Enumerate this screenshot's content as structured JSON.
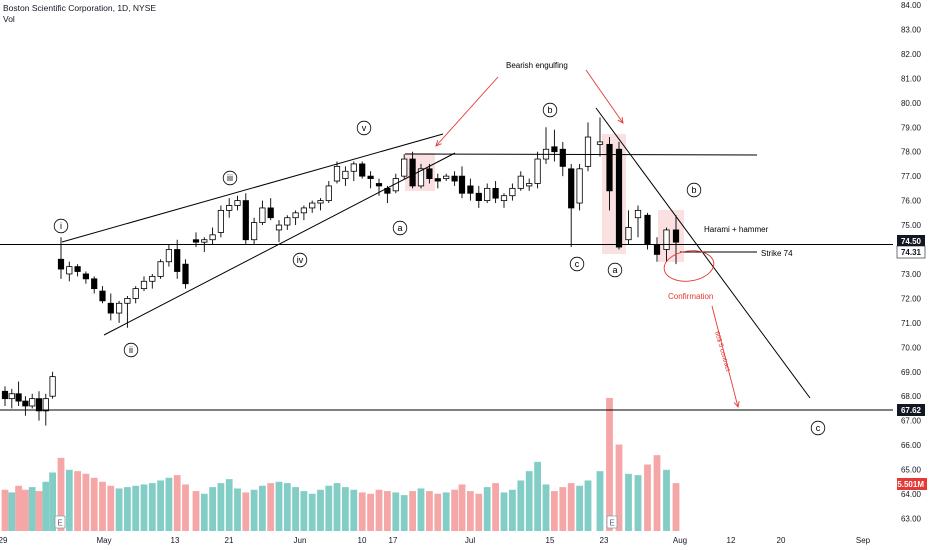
{
  "header": {
    "symbol_line": "Boston Scientific Corporation, 1D, NYSE",
    "volume_label": "Vol"
  },
  "colors": {
    "up": "#ffffff",
    "down": "#000000",
    "vol_up": "#82cec6",
    "vol_down": "#f5a6a6",
    "annotation": "#e53935",
    "highlight": "#f8d6d6",
    "axis_text": "#131722",
    "badge_bg": "#131722"
  },
  "chart_data": {
    "type": "candlestick",
    "y_ticks": [
      "63.00",
      "64.00",
      "65.00",
      "66.00",
      "67.00",
      "68.00",
      "69.00",
      "70.00",
      "71.00",
      "72.00",
      "73.00",
      "74.00",
      "75.00",
      "76.00",
      "77.00",
      "78.00",
      "79.00",
      "80.00",
      "81.00",
      "82.00",
      "83.00",
      "84.00"
    ],
    "ylim": [
      63,
      84
    ],
    "x_ticks": [
      "29",
      "May",
      "13",
      "21",
      "Jun",
      "10",
      "17",
      "Jul",
      "15",
      "23",
      "Aug",
      "12",
      "20",
      "Sep"
    ],
    "price_badges": [
      "74.50",
      "74.31",
      "67.62"
    ],
    "volume_badge": "5.501M",
    "earnings_markers": [
      "E",
      "E"
    ],
    "candles": [
      {
        "o": 68.2,
        "h": 68.4,
        "l": 67.6,
        "c": 67.9
      },
      {
        "o": 67.9,
        "h": 68.3,
        "l": 67.5,
        "c": 68.1
      },
      {
        "o": 68.1,
        "h": 68.6,
        "l": 67.6,
        "c": 67.8
      },
      {
        "o": 67.8,
        "h": 68.0,
        "l": 67.2,
        "c": 67.6
      },
      {
        "o": 67.6,
        "h": 68.1,
        "l": 67.5,
        "c": 67.9
      },
      {
        "o": 67.9,
        "h": 68.2,
        "l": 67.0,
        "c": 67.4
      },
      {
        "o": 67.4,
        "h": 68.1,
        "l": 66.8,
        "c": 67.9
      },
      {
        "o": 68.0,
        "h": 69.0,
        "l": 67.9,
        "c": 68.8
      },
      {
        "o": 73.6,
        "h": 74.5,
        "l": 72.8,
        "c": 73.2
      },
      {
        "o": 73.0,
        "h": 73.5,
        "l": 72.7,
        "c": 73.3
      },
      {
        "o": 73.3,
        "h": 73.4,
        "l": 72.9,
        "c": 73.1
      },
      {
        "o": 73.0,
        "h": 73.1,
        "l": 72.6,
        "c": 72.8
      },
      {
        "o": 72.8,
        "h": 72.9,
        "l": 72.2,
        "c": 72.4
      },
      {
        "o": 72.3,
        "h": 72.5,
        "l": 71.8,
        "c": 71.9
      },
      {
        "o": 71.8,
        "h": 72.2,
        "l": 71.1,
        "c": 71.4
      },
      {
        "o": 71.4,
        "h": 71.9,
        "l": 71.0,
        "c": 71.8
      },
      {
        "o": 71.8,
        "h": 72.1,
        "l": 70.8,
        "c": 72.0
      },
      {
        "o": 72.0,
        "h": 72.5,
        "l": 71.8,
        "c": 72.4
      },
      {
        "o": 72.4,
        "h": 72.9,
        "l": 72.3,
        "c": 72.7
      },
      {
        "o": 72.7,
        "h": 73.0,
        "l": 72.4,
        "c": 72.9
      },
      {
        "o": 72.9,
        "h": 73.6,
        "l": 72.8,
        "c": 73.5
      },
      {
        "o": 73.5,
        "h": 74.2,
        "l": 73.3,
        "c": 74.0
      },
      {
        "o": 74.0,
        "h": 74.4,
        "l": 72.8,
        "c": 73.1
      },
      {
        "o": 73.4,
        "h": 73.6,
        "l": 72.4,
        "c": 72.6
      },
      {
        "o": 74.4,
        "h": 74.7,
        "l": 74.1,
        "c": 74.3
      },
      {
        "o": 74.3,
        "h": 74.5,
        "l": 73.9,
        "c": 74.4
      },
      {
        "o": 74.4,
        "h": 74.9,
        "l": 74.2,
        "c": 74.6
      },
      {
        "o": 74.7,
        "h": 75.8,
        "l": 74.5,
        "c": 75.6
      },
      {
        "o": 75.6,
        "h": 76.1,
        "l": 75.3,
        "c": 75.8
      },
      {
        "o": 75.8,
        "h": 76.2,
        "l": 75.6,
        "c": 76.0
      },
      {
        "o": 76.0,
        "h": 76.3,
        "l": 74.2,
        "c": 74.4
      },
      {
        "o": 74.4,
        "h": 75.3,
        "l": 74.2,
        "c": 75.1
      },
      {
        "o": 75.1,
        "h": 76.0,
        "l": 75.0,
        "c": 75.7
      },
      {
        "o": 75.7,
        "h": 76.1,
        "l": 75.2,
        "c": 75.3
      },
      {
        "o": 74.8,
        "h": 75.2,
        "l": 74.3,
        "c": 75.0
      },
      {
        "o": 75.0,
        "h": 75.4,
        "l": 74.8,
        "c": 75.3
      },
      {
        "o": 75.3,
        "h": 75.6,
        "l": 75.0,
        "c": 75.5
      },
      {
        "o": 75.5,
        "h": 75.8,
        "l": 75.2,
        "c": 75.7
      },
      {
        "o": 75.7,
        "h": 76.0,
        "l": 75.5,
        "c": 75.9
      },
      {
        "o": 75.9,
        "h": 76.1,
        "l": 75.6,
        "c": 76.0
      },
      {
        "o": 76.0,
        "h": 76.8,
        "l": 75.9,
        "c": 76.6
      },
      {
        "o": 76.8,
        "h": 77.6,
        "l": 76.7,
        "c": 77.4
      },
      {
        "o": 76.9,
        "h": 77.4,
        "l": 76.6,
        "c": 77.2
      },
      {
        "o": 77.2,
        "h": 77.6,
        "l": 76.8,
        "c": 77.5
      },
      {
        "o": 77.5,
        "h": 77.6,
        "l": 76.9,
        "c": 77.0
      },
      {
        "o": 77.0,
        "h": 77.2,
        "l": 76.5,
        "c": 76.9
      },
      {
        "o": 76.7,
        "h": 76.9,
        "l": 76.2,
        "c": 76.6
      },
      {
        "o": 76.5,
        "h": 76.6,
        "l": 75.9,
        "c": 76.3
      },
      {
        "o": 76.4,
        "h": 77.1,
        "l": 76.3,
        "c": 76.9
      },
      {
        "o": 77.0,
        "h": 77.9,
        "l": 76.9,
        "c": 77.7
      },
      {
        "o": 77.7,
        "h": 78.0,
        "l": 76.5,
        "c": 76.6
      },
      {
        "o": 76.6,
        "h": 77.5,
        "l": 76.5,
        "c": 77.3
      },
      {
        "o": 77.3,
        "h": 77.5,
        "l": 76.7,
        "c": 76.9
      },
      {
        "o": 76.9,
        "h": 77.1,
        "l": 76.5,
        "c": 76.8
      },
      {
        "o": 76.9,
        "h": 77.1,
        "l": 76.8,
        "c": 77.0
      },
      {
        "o": 77.0,
        "h": 77.2,
        "l": 76.6,
        "c": 76.8
      },
      {
        "o": 77.0,
        "h": 77.4,
        "l": 76.1,
        "c": 76.3
      },
      {
        "o": 76.6,
        "h": 76.9,
        "l": 76.0,
        "c": 76.3
      },
      {
        "o": 76.3,
        "h": 76.6,
        "l": 75.7,
        "c": 76.0
      },
      {
        "o": 76.0,
        "h": 76.7,
        "l": 75.9,
        "c": 76.5
      },
      {
        "o": 76.5,
        "h": 76.8,
        "l": 75.9,
        "c": 76.1
      },
      {
        "o": 76.0,
        "h": 76.3,
        "l": 75.7,
        "c": 76.2
      },
      {
        "o": 76.2,
        "h": 76.7,
        "l": 76.0,
        "c": 76.5
      },
      {
        "o": 76.5,
        "h": 77.2,
        "l": 76.4,
        "c": 77.0
      },
      {
        "o": 76.6,
        "h": 76.9,
        "l": 76.4,
        "c": 76.7
      },
      {
        "o": 76.7,
        "h": 78.0,
        "l": 76.5,
        "c": 77.7
      },
      {
        "o": 77.7,
        "h": 79.0,
        "l": 77.5,
        "c": 78.1
      },
      {
        "o": 78.2,
        "h": 78.9,
        "l": 77.6,
        "c": 78.0
      },
      {
        "o": 78.1,
        "h": 78.4,
        "l": 77.0,
        "c": 77.4
      },
      {
        "o": 77.3,
        "h": 77.5,
        "l": 74.1,
        "c": 75.7
      },
      {
        "o": 75.9,
        "h": 77.5,
        "l": 75.6,
        "c": 77.3
      },
      {
        "o": 77.4,
        "h": 79.2,
        "l": 77.2,
        "c": 78.6
      },
      {
        "o": 78.3,
        "h": 79.4,
        "l": 77.8,
        "c": 78.4
      },
      {
        "o": 78.3,
        "h": 78.6,
        "l": 75.6,
        "c": 76.4
      },
      {
        "o": 78.1,
        "h": 78.4,
        "l": 74.0,
        "c": 74.1
      },
      {
        "o": 74.4,
        "h": 75.6,
        "l": 74.2,
        "c": 74.9
      },
      {
        "o": 75.3,
        "h": 75.8,
        "l": 74.5,
        "c": 75.6
      },
      {
        "o": 75.4,
        "h": 75.5,
        "l": 74.0,
        "c": 74.2
      },
      {
        "o": 74.2,
        "h": 74.5,
        "l": 73.5,
        "c": 73.8
      },
      {
        "o": 74.0,
        "h": 74.9,
        "l": 73.5,
        "c": 74.8
      },
      {
        "o": 74.8,
        "h": 75.4,
        "l": 73.4,
        "c": 74.3
      }
    ],
    "volume": {
      "scale_max": 100,
      "values": [
        31,
        29,
        34,
        31,
        33,
        30,
        37,
        44,
        55,
        46,
        45,
        43,
        40,
        37,
        34,
        32,
        33,
        34,
        35,
        36,
        38,
        40,
        42,
        35,
        30,
        28,
        33,
        36,
        39,
        32,
        29,
        31,
        34,
        36,
        37,
        36,
        33,
        30,
        28,
        31,
        34,
        36,
        33,
        31,
        29,
        28,
        31,
        30,
        29,
        27,
        30,
        32,
        30,
        28,
        29,
        31,
        35,
        30,
        28,
        33,
        36,
        29,
        31,
        38,
        45,
        52,
        35,
        30,
        33,
        36,
        34,
        38,
        45,
        100,
        65,
        43,
        42,
        50,
        57,
        46,
        36
      ]
    },
    "annotations": {
      "bearish_engulfing": "Bearish engulfing",
      "harami": "Harami + hammer",
      "strike": "Strike 74",
      "confirmation": "Confirmation",
      "contract": "60$ 5 contract"
    },
    "wave_labels": [
      "i",
      "ii",
      "iii",
      "iv",
      "v",
      "a",
      "b",
      "c",
      "a",
      "b",
      "c"
    ]
  }
}
